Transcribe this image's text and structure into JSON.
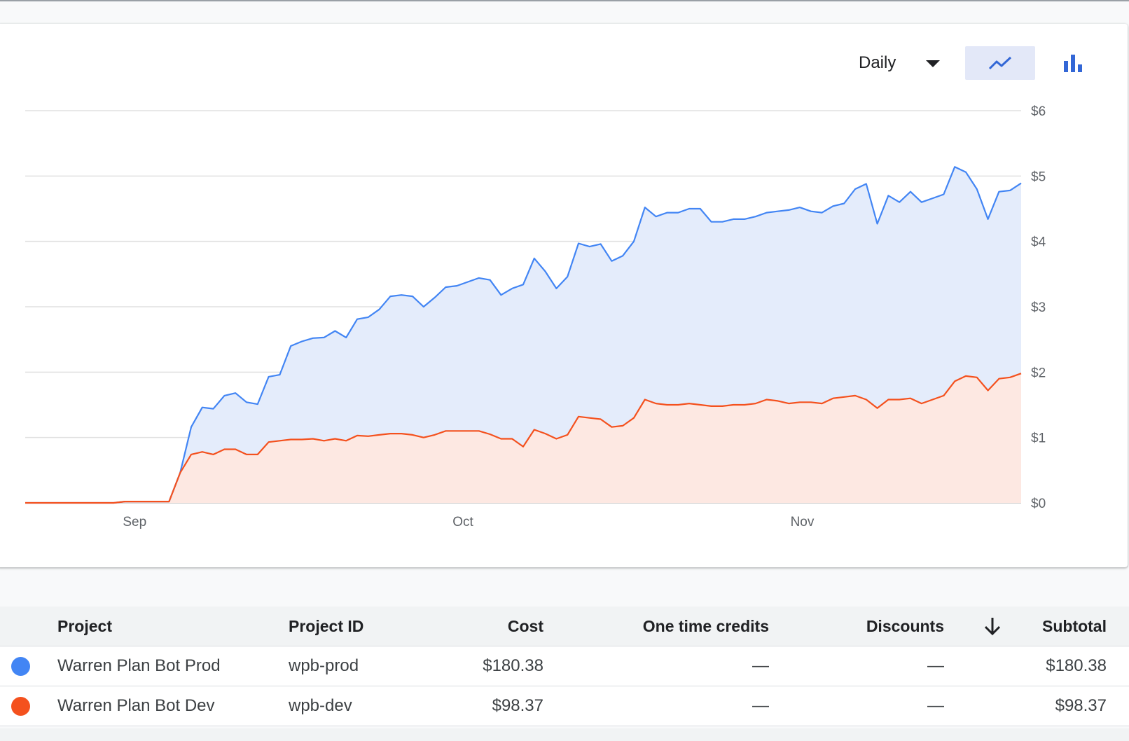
{
  "controls": {
    "granularity_label": "Daily",
    "line_view_icon": "line-chart-icon",
    "bar_view_icon": "bar-chart-icon",
    "active_view": "line"
  },
  "colors": {
    "prod": "#4285f4",
    "prod_fill": "#e4ecfb",
    "dev": "#f4511e",
    "dev_fill": "#fde8e2",
    "grid": "#e0e0e0"
  },
  "chart_data": {
    "type": "area",
    "stacked": true,
    "x_start": "Aug 22",
    "x_end": "Nov 21",
    "x_tick_labels": [
      "Sep",
      "Oct",
      "Nov"
    ],
    "x_tick_dates": [
      "Sep 1",
      "Oct 1",
      "Nov 1"
    ],
    "y_tick_labels": [
      "$0",
      "$1",
      "$2",
      "$3",
      "$4",
      "$5",
      "$6"
    ],
    "ylim": [
      0,
      6
    ],
    "y_axis_position": "right",
    "grid": true,
    "series": [
      {
        "key": "dev",
        "color": "#f4511e",
        "values": [
          0,
          0,
          0,
          0,
          0,
          0,
          0,
          0,
          0,
          0.02,
          0.02,
          0.02,
          0.02,
          0.02,
          0.46,
          0.74,
          0.78,
          0.74,
          0.82,
          0.82,
          0.74,
          0.74,
          0.93,
          0.95,
          0.97,
          0.97,
          0.98,
          0.95,
          0.98,
          0.95,
          1.03,
          1.02,
          1.04,
          1.06,
          1.06,
          1.04,
          1.0,
          1.04,
          1.1,
          1.1,
          1.1,
          1.1,
          1.05,
          0.98,
          0.98,
          0.86,
          1.12,
          1.06,
          0.98,
          1.04,
          1.32,
          1.3,
          1.28,
          1.16,
          1.18,
          1.3,
          1.58,
          1.52,
          1.5,
          1.5,
          1.52,
          1.5,
          1.48,
          1.48,
          1.5,
          1.5,
          1.52,
          1.58,
          1.56,
          1.52,
          1.54,
          1.54,
          1.52,
          1.6,
          1.62,
          1.64,
          1.58,
          1.45,
          1.58,
          1.58,
          1.6,
          1.52,
          1.58,
          1.64,
          1.86,
          1.94,
          1.92,
          1.72,
          1.9,
          1.92,
          1.98
        ]
      },
      {
        "key": "prod",
        "color": "#4285f4",
        "values": [
          0,
          0,
          0,
          0,
          0,
          0,
          0,
          0,
          0,
          0,
          0,
          0,
          0,
          0,
          0,
          0.42,
          0.68,
          0.7,
          0.82,
          0.86,
          0.8,
          0.77,
          1.0,
          1.01,
          1.43,
          1.5,
          1.54,
          1.58,
          1.65,
          1.58,
          1.78,
          1.82,
          1.92,
          2.1,
          2.12,
          2.12,
          2.0,
          2.1,
          2.2,
          2.22,
          2.28,
          2.34,
          2.36,
          2.2,
          2.3,
          2.48,
          2.62,
          2.48,
          2.3,
          2.42,
          2.65,
          2.62,
          2.68,
          2.54,
          2.6,
          2.7,
          2.94,
          2.86,
          2.94,
          2.94,
          2.98,
          3.0,
          2.82,
          2.82,
          2.84,
          2.84,
          2.86,
          2.86,
          2.9,
          2.96,
          2.98,
          2.92,
          2.92,
          2.94,
          2.96,
          3.16,
          3.3,
          2.82,
          3.12,
          3.02,
          3.16,
          3.08,
          3.08,
          3.08,
          3.28,
          3.12,
          2.88,
          2.62,
          2.86,
          2.86,
          2.91
        ]
      }
    ]
  },
  "table": {
    "headers": {
      "project": "Project",
      "project_id": "Project ID",
      "cost": "Cost",
      "credits": "One time credits",
      "discounts": "Discounts",
      "subtotal": "Subtotal"
    },
    "rows": [
      {
        "color": "#4285f4",
        "project": "Warren Plan Bot Prod",
        "project_id": "wpb-prod",
        "cost": "$180.38",
        "credits": "—",
        "discounts": "—",
        "subtotal": "$180.38"
      },
      {
        "color": "#f4511e",
        "project": "Warren Plan Bot Dev",
        "project_id": "wpb-dev",
        "cost": "$98.37",
        "credits": "—",
        "discounts": "—",
        "subtotal": "$98.37"
      }
    ]
  }
}
